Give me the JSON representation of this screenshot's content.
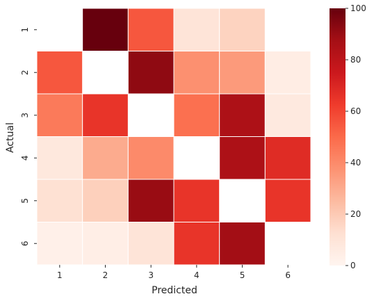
{
  "chart_data": {
    "type": "heatmap",
    "xlabel": "Predicted",
    "ylabel": "Actual",
    "x_categories": [
      "1",
      "2",
      "3",
      "4",
      "5",
      "6"
    ],
    "y_categories": [
      "1",
      "2",
      "3",
      "4",
      "5",
      "6"
    ],
    "values": [
      [
        null,
        100,
        55,
        10,
        17,
        null
      ],
      [
        55,
        null,
        92,
        38,
        35,
        5
      ],
      [
        45,
        65,
        null,
        48,
        85,
        7
      ],
      [
        8,
        30,
        40,
        null,
        85,
        68
      ],
      [
        12,
        18,
        90,
        65,
        null,
        65
      ],
      [
        3,
        4,
        10,
        65,
        88,
        null
      ]
    ],
    "colorbar": {
      "min": 0,
      "max": 100,
      "ticks": [
        "0",
        "20",
        "40",
        "60",
        "80",
        "100"
      ],
      "colormap": "Reds"
    },
    "grid_line_color": "#ffffff"
  }
}
